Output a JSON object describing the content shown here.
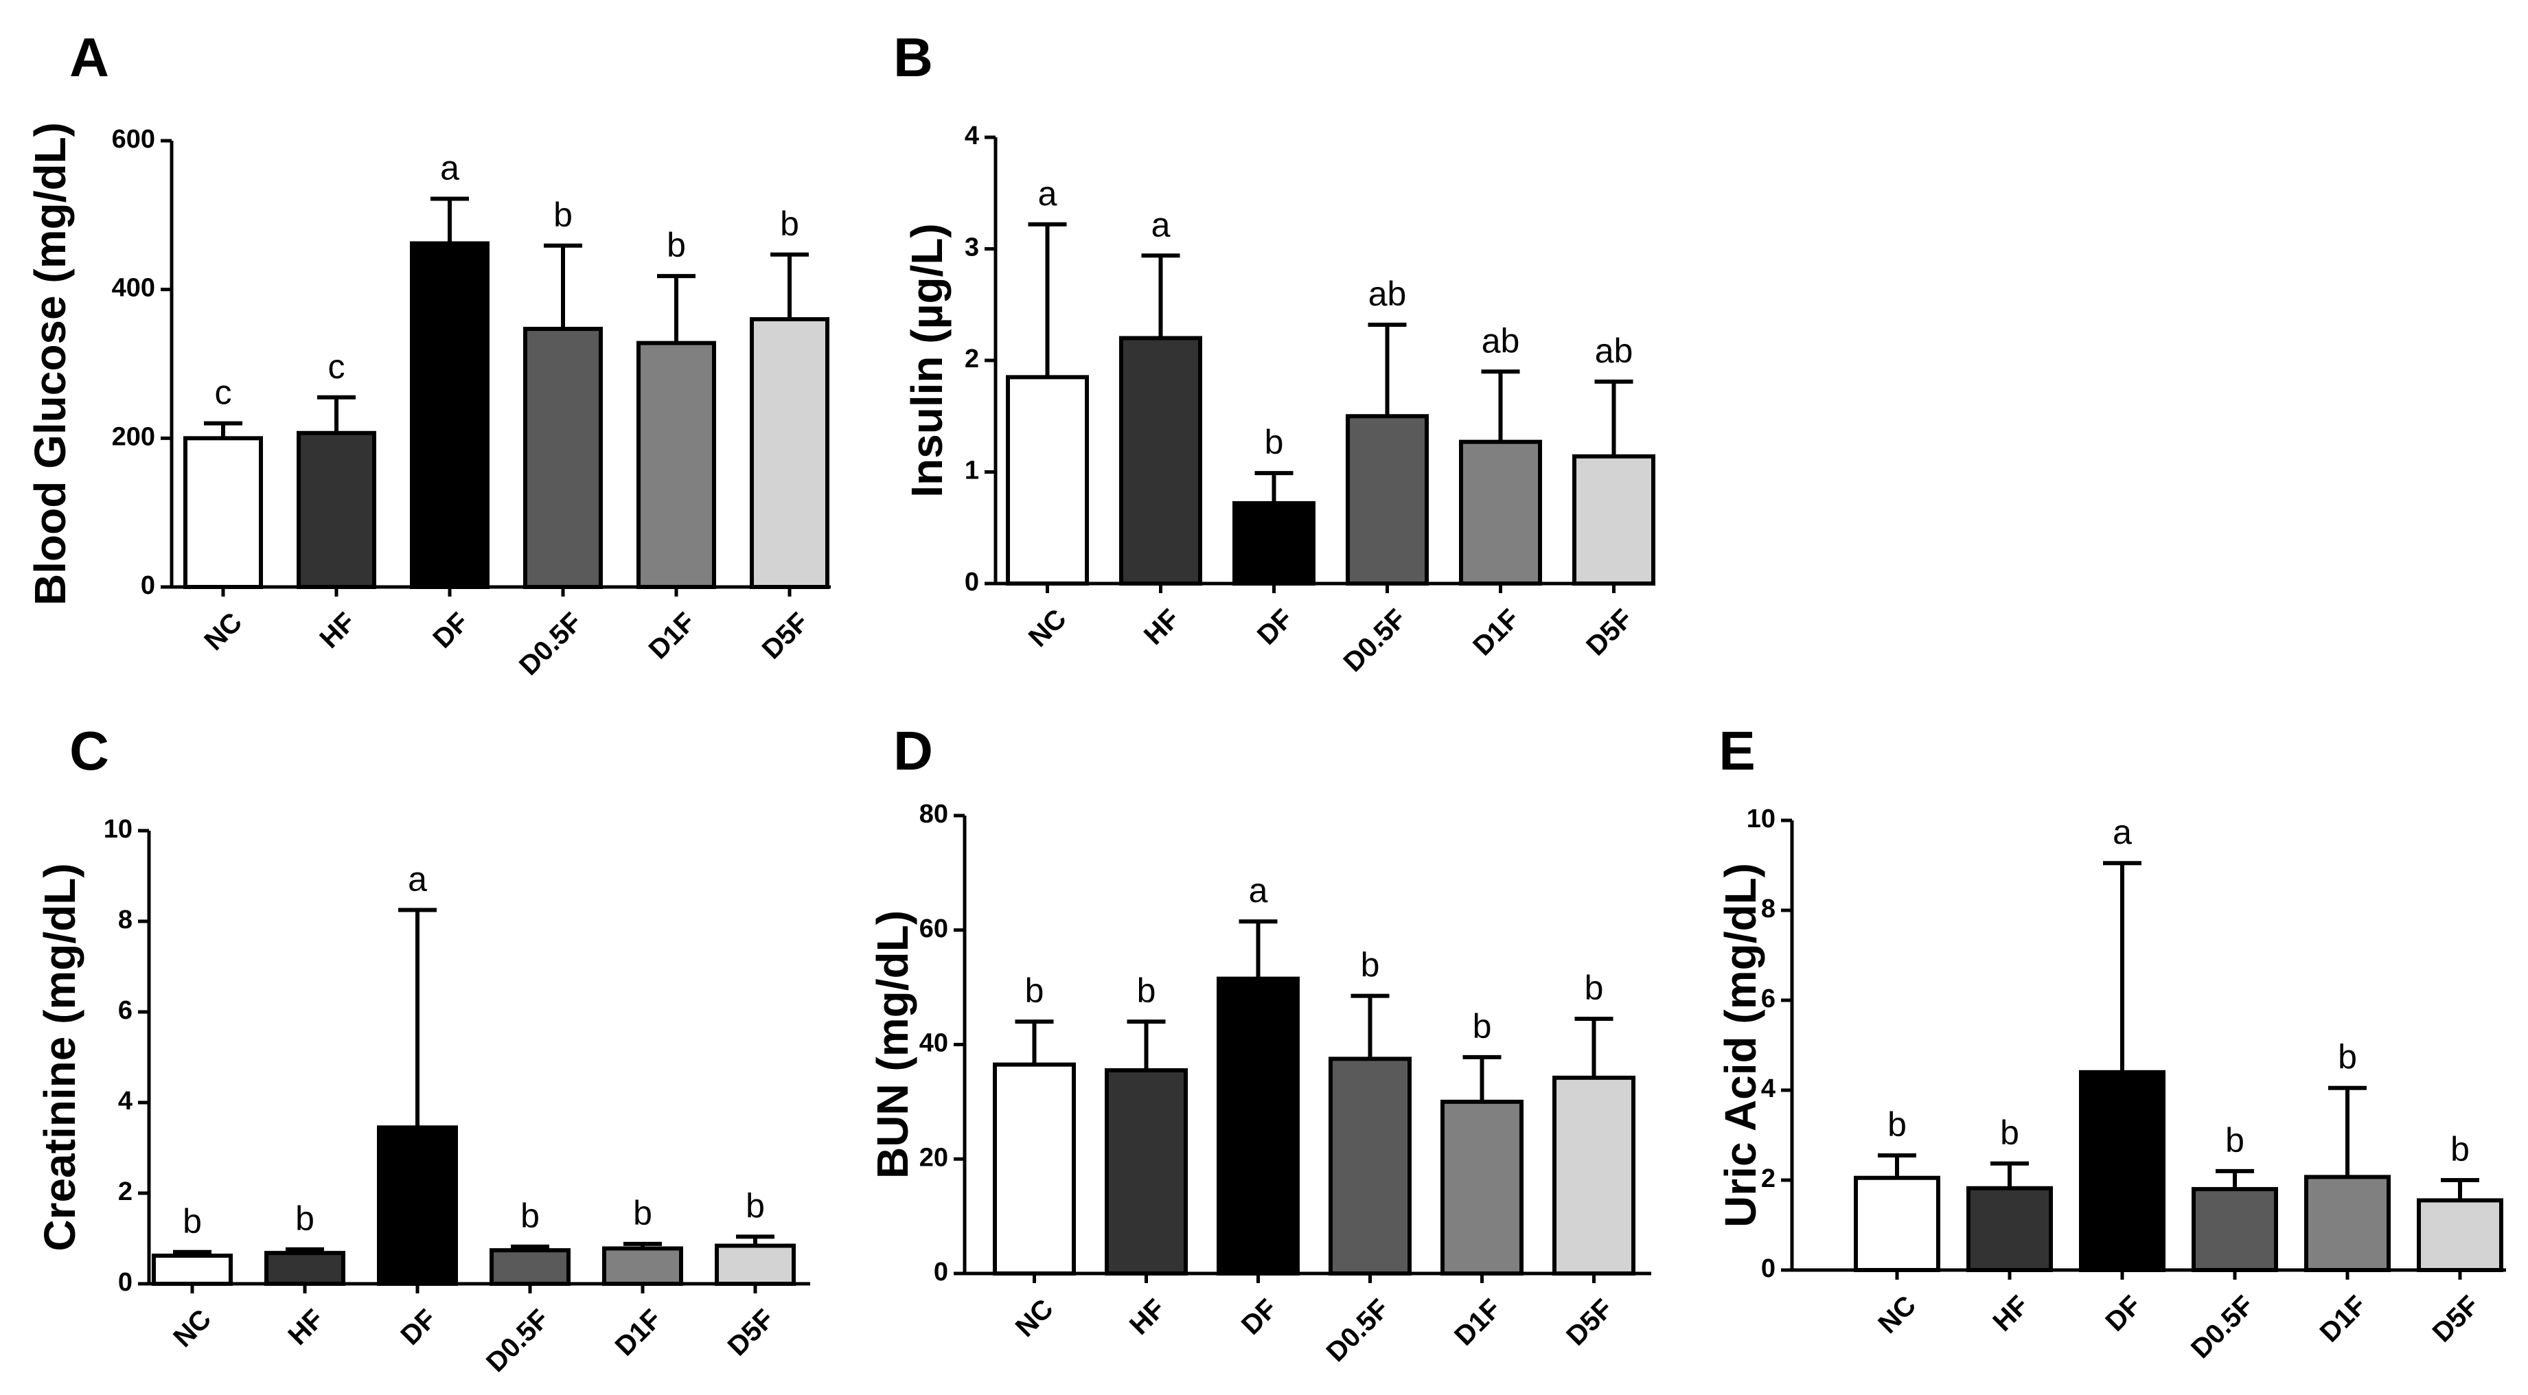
{
  "chart_data": [
    {
      "panel": "A",
      "type": "bar",
      "ylabel": "Blood Glucose (mg/dL)",
      "ylim": [
        0,
        600
      ],
      "yticks": [
        0,
        200,
        400,
        600
      ],
      "categories": [
        "NC",
        "HF",
        "DF",
        "D0.5F",
        "D1F",
        "D5F"
      ],
      "values": [
        200,
        207,
        462,
        347,
        328,
        360
      ],
      "errors": [
        20,
        48,
        60,
        112,
        90,
        87
      ],
      "letters": [
        "c",
        "c",
        "a",
        "b",
        "b",
        "b"
      ],
      "colors": [
        "#ffffff",
        "#333333",
        "#000000",
        "#5a5a5a",
        "#808080",
        "#d3d3d3"
      ]
    },
    {
      "panel": "B",
      "type": "bar",
      "ylabel": "Insulin (µg/L)",
      "ylim": [
        0,
        4
      ],
      "yticks": [
        0,
        1,
        2,
        3,
        4
      ],
      "categories": [
        "NC",
        "HF",
        "DF",
        "D0.5F",
        "D1F",
        "D5F"
      ],
      "values": [
        1.85,
        2.2,
        0.72,
        1.5,
        1.27,
        1.14
      ],
      "errors": [
        1.37,
        0.74,
        0.27,
        0.82,
        0.63,
        0.67
      ],
      "letters": [
        "a",
        "a",
        "b",
        "ab",
        "ab",
        "ab"
      ],
      "colors": [
        "#ffffff",
        "#333333",
        "#000000",
        "#5a5a5a",
        "#808080",
        "#d3d3d3"
      ]
    },
    {
      "panel": "C",
      "type": "bar",
      "ylabel": "Creatinine (mg/dL)",
      "ylim": [
        0,
        10
      ],
      "yticks": [
        0,
        2,
        4,
        6,
        8,
        10
      ],
      "categories": [
        "NC",
        "HF",
        "DF",
        "D0.5F",
        "D1F",
        "D5F"
      ],
      "values": [
        0.62,
        0.68,
        3.45,
        0.74,
        0.78,
        0.84
      ],
      "errors": [
        0.08,
        0.08,
        4.8,
        0.08,
        0.1,
        0.2
      ],
      "letters": [
        "b",
        "b",
        "a",
        "b",
        "b",
        "b"
      ],
      "colors": [
        "#ffffff",
        "#333333",
        "#000000",
        "#5a5a5a",
        "#808080",
        "#d3d3d3"
      ]
    },
    {
      "panel": "D",
      "type": "bar",
      "ylabel": "BUN (mg/dL)",
      "ylim": [
        0,
        80
      ],
      "yticks": [
        0,
        20,
        40,
        60,
        80
      ],
      "categories": [
        "NC",
        "HF",
        "DF",
        "D0.5F",
        "D1F",
        "D5F"
      ],
      "values": [
        36.5,
        35.5,
        51.5,
        37.5,
        30,
        34.2
      ],
      "errors": [
        7.5,
        8.5,
        10,
        11,
        7.8,
        10.3
      ],
      "letters": [
        "b",
        "b",
        "a",
        "b",
        "b",
        "b"
      ],
      "colors": [
        "#ffffff",
        "#333333",
        "#000000",
        "#5a5a5a",
        "#808080",
        "#d3d3d3"
      ]
    },
    {
      "panel": "E",
      "type": "bar",
      "ylabel": "Uric Acid (mg/dL)",
      "ylim": [
        0,
        10
      ],
      "yticks": [
        0,
        2,
        4,
        6,
        8,
        10
      ],
      "categories": [
        "NC",
        "HF",
        "DF",
        "D0.5F",
        "D1F",
        "D5F"
      ],
      "values": [
        2.05,
        1.82,
        4.4,
        1.8,
        2.07,
        1.55
      ],
      "errors": [
        0.5,
        0.55,
        4.65,
        0.4,
        1.98,
        0.45
      ],
      "letters": [
        "b",
        "b",
        "a",
        "b",
        "b",
        "b"
      ],
      "colors": [
        "#ffffff",
        "#333333",
        "#000000",
        "#5a5a5a",
        "#808080",
        "#d3d3d3"
      ]
    }
  ]
}
